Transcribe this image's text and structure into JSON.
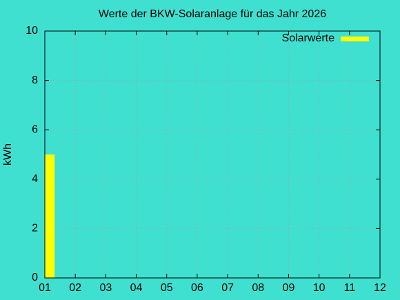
{
  "chart_data": {
    "type": "bar",
    "title": "Werte der BKW-Solaranlage für das Jahr 2026",
    "y_label": "kWh",
    "x": [
      1
    ],
    "values": [
      5
    ],
    "series_name": "Solarwerte",
    "color": "#ffff00",
    "xlim": [
      1,
      12
    ],
    "xticks": [
      {
        "value": 1,
        "label": "01"
      },
      {
        "value": 2,
        "label": "02"
      },
      {
        "value": 3,
        "label": "03"
      },
      {
        "value": 4,
        "label": "04"
      },
      {
        "value": 5,
        "label": "05"
      },
      {
        "value": 6,
        "label": "06"
      },
      {
        "value": 7,
        "label": "07"
      },
      {
        "value": 8,
        "label": "08"
      },
      {
        "value": 9,
        "label": "09"
      },
      {
        "value": 10,
        "label": "10"
      },
      {
        "value": 11,
        "label": "11"
      },
      {
        "value": 12,
        "label": "12"
      }
    ],
    "ylim": [
      0,
      10
    ],
    "yticks": [
      0,
      2,
      4,
      6,
      8,
      10
    ],
    "grid": true,
    "legend": "top-right"
  }
}
